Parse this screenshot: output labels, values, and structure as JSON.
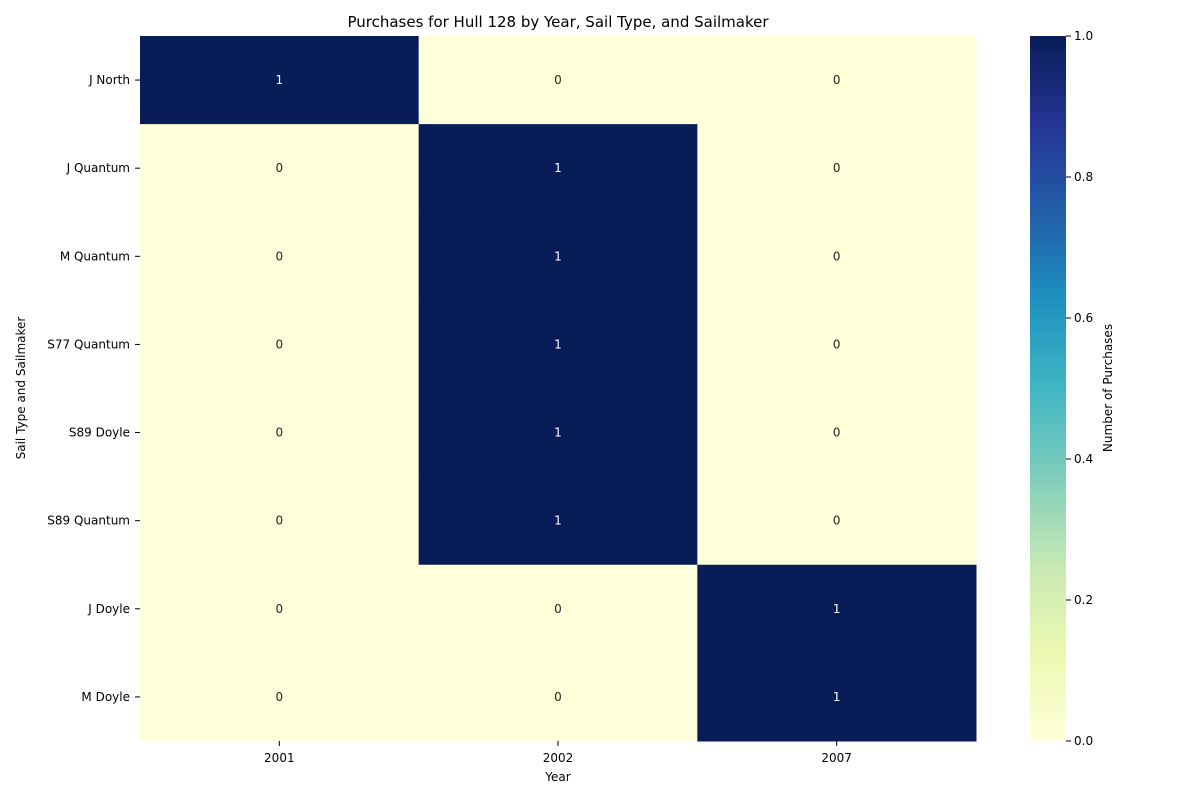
{
  "chart_data": {
    "type": "heatmap",
    "title": "Purchases for Hull 128 by Year, Sail Type, and Sailmaker",
    "xlabel": "Year",
    "ylabel": "Sail Type and Sailmaker",
    "x_categories": [
      "2001",
      "2002",
      "2007"
    ],
    "y_categories": [
      "J North",
      "J Quantum",
      "M Quantum",
      "S77 Quantum",
      "S89 Doyle",
      "S89 Quantum",
      "J Doyle",
      "M Doyle"
    ],
    "values": [
      [
        1,
        0,
        0
      ],
      [
        0,
        1,
        0
      ],
      [
        0,
        1,
        0
      ],
      [
        0,
        1,
        0
      ],
      [
        0,
        1,
        0
      ],
      [
        0,
        1,
        0
      ],
      [
        0,
        0,
        1
      ],
      [
        0,
        0,
        1
      ]
    ],
    "colorbar": {
      "label": "Number of Purchases",
      "range": [
        0.0,
        1.0
      ],
      "ticks": [
        "0.0",
        "0.2",
        "0.4",
        "0.6",
        "0.8",
        "1.0"
      ],
      "colormap": "YlGnBu",
      "low_color": "#ffffd9",
      "high_color": "#081d58"
    },
    "annotations": true,
    "grid": false
  }
}
